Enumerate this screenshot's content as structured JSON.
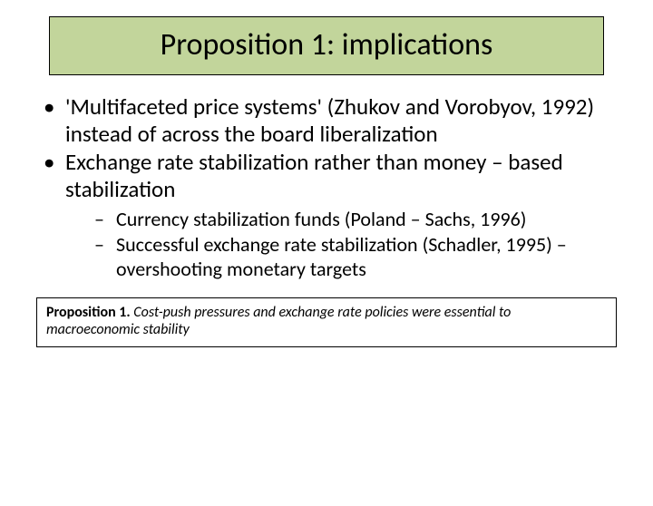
{
  "slide": {
    "title": "Proposition 1: implications",
    "title_box": {
      "background_color": "#c2d59b",
      "border_color": "#000000",
      "title_fontsize": 34
    },
    "bullets": [
      {
        "text": "'Multifaceted price systems' (Zhukov and Vorobyov, 1992) instead of across the board liberalization"
      },
      {
        "text": "Exchange rate stabilization rather than money – based stabilization",
        "sub": [
          {
            "text": "Currency stabilization funds (Poland – Sachs, 1996)"
          },
          {
            "text": "Successful  exchange rate stabilization (Schadler, 1995) – overshooting monetary targets"
          }
        ]
      }
    ],
    "bullet_fontsize_l1": 25,
    "bullet_fontsize_l2": 22,
    "footer": {
      "label": "Proposition 1.",
      "text": " Cost-push pressures and exchange rate policies were essential to macroeconomic stability",
      "fontsize": 16,
      "border_color": "#000000"
    },
    "background_color": "#ffffff",
    "text_color": "#000000"
  }
}
